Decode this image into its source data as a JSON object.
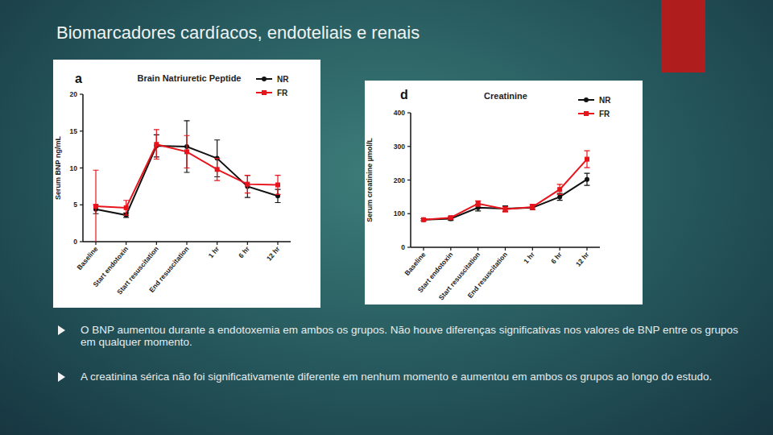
{
  "slide": {
    "title": "Biomarcadores cardíacos, endoteliais e renais",
    "bullets": [
      "O BNP aumentou durante a endotoxemia em ambos os grupos.  Não houve diferenças significativas nos valores de BNP entre os grupos em qualquer momento.",
      "A creatinina sérica não foi significativamente diferente em nenhum momento e aumentou em ambos os grupos ao longo do estudo."
    ]
  },
  "chart_data": [
    {
      "type": "line",
      "title": "Brain Natriuretic Peptide",
      "annotations": [
        "a"
      ],
      "y_label": "Serum BNP ng/mL",
      "categories": [
        "Baseline",
        "Start endotoxin",
        "Start resuscitation",
        "End resuscitation",
        "1 hr",
        "6 hr",
        "12 hr"
      ],
      "series": [
        {
          "name": "NR",
          "color": "#111111",
          "marker": "circle",
          "values": [
            4.4,
            3.6,
            13.0,
            12.9,
            11.3,
            7.5,
            6.2
          ],
          "errors": [
            0.6,
            0.3,
            1.5,
            3.5,
            2.5,
            1.5,
            0.9
          ]
        },
        {
          "name": "FR",
          "color": "#e8141c",
          "marker": "square",
          "values": [
            4.8,
            4.6,
            13.2,
            12.2,
            9.8,
            7.8,
            7.7
          ],
          "errors": [
            4.9,
            1.0,
            2.0,
            2.2,
            1.5,
            1.2,
            1.3
          ]
        }
      ],
      "ylim": [
        0,
        20
      ],
      "yticks": [
        0,
        5,
        10,
        15,
        20
      ],
      "legend": "upper right",
      "grid": false
    },
    {
      "type": "line",
      "title": "Creatinine",
      "annotations": [
        "d"
      ],
      "y_label": "Serum creatinine µmol/L",
      "categories": [
        "Baseline",
        "Start endotoxin",
        "Start resuscitation",
        "End resuscitation",
        "1 hr",
        "6 hr",
        "12 hr"
      ],
      "series": [
        {
          "name": "NR",
          "color": "#111111",
          "marker": "circle",
          "values": [
            82,
            85,
            118,
            115,
            118,
            150,
            202
          ],
          "errors": [
            3,
            5,
            10,
            8,
            6,
            10,
            18
          ]
        },
        {
          "name": "FR",
          "color": "#e8141c",
          "marker": "square",
          "values": [
            82,
            88,
            130,
            113,
            120,
            172,
            262
          ],
          "errors": [
            3,
            5,
            8,
            8,
            8,
            15,
            25
          ]
        }
      ],
      "ylim": [
        0,
        400
      ],
      "yticks": [
        0,
        100,
        200,
        300,
        400
      ],
      "legend": "upper right",
      "grid": false
    }
  ]
}
